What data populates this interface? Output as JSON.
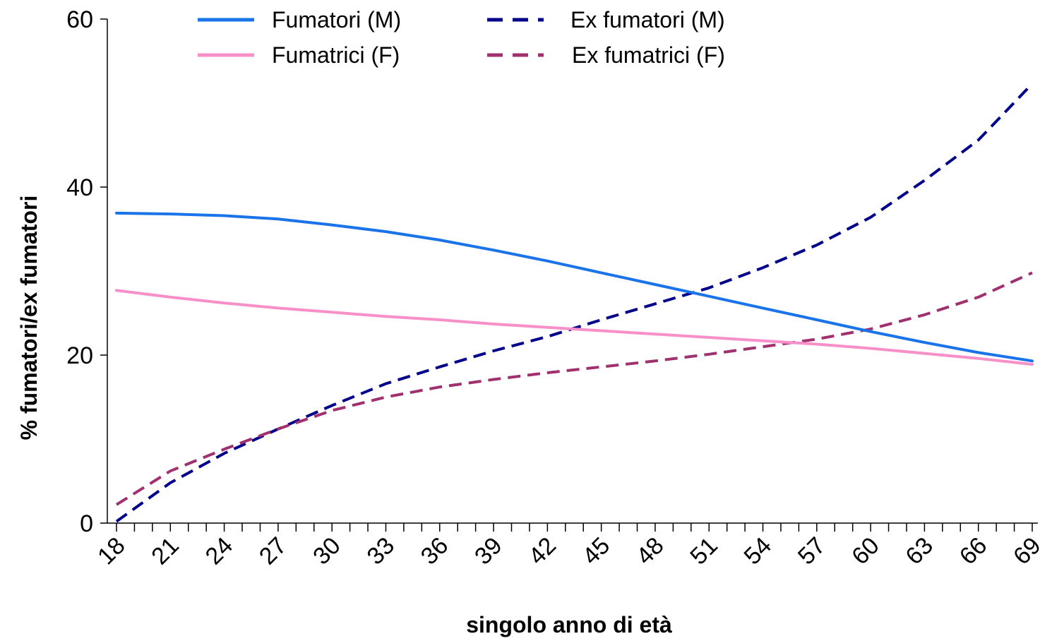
{
  "chart_data": {
    "type": "line",
    "xlabel": "singolo anno di età",
    "ylabel": "% fumatori/ex fumatori",
    "xlim": [
      18,
      69
    ],
    "ylim": [
      0,
      60
    ],
    "x_ticks": [
      18,
      21,
      24,
      27,
      30,
      33,
      36,
      39,
      42,
      45,
      48,
      51,
      54,
      57,
      60,
      63,
      66,
      69
    ],
    "y_ticks": [
      0,
      20,
      40,
      60
    ],
    "legend_position": "top",
    "x": [
      18,
      21,
      24,
      27,
      30,
      33,
      36,
      39,
      42,
      45,
      48,
      51,
      54,
      57,
      60,
      63,
      66,
      69
    ],
    "series": [
      {
        "name": "Fumatori (M)",
        "color": "#1a73e8",
        "style": "solid",
        "values": [
          36.9,
          36.8,
          36.6,
          36.2,
          35.5,
          34.7,
          33.7,
          32.5,
          31.2,
          29.8,
          28.4,
          27.0,
          25.6,
          24.2,
          22.8,
          21.5,
          20.3,
          19.3
        ]
      },
      {
        "name": "Fumatrici (F)",
        "color": "#f78fc8",
        "style": "solid",
        "values": [
          27.7,
          26.9,
          26.2,
          25.6,
          25.1,
          24.6,
          24.2,
          23.7,
          23.3,
          22.9,
          22.5,
          22.1,
          21.7,
          21.3,
          20.8,
          20.2,
          19.6,
          18.9
        ]
      },
      {
        "name": "Ex fumatori (M)",
        "color": "#00008b",
        "style": "dashed",
        "values": [
          0.2,
          4.8,
          8.3,
          11.2,
          14.0,
          16.6,
          18.6,
          20.5,
          22.2,
          24.2,
          26.1,
          28.0,
          30.4,
          33.1,
          36.4,
          40.8,
          45.6,
          52.3
        ]
      },
      {
        "name": "Ex fumatrici (F)",
        "color": "#a0306e",
        "style": "dashed",
        "values": [
          2.2,
          6.2,
          8.8,
          11.2,
          13.4,
          15.0,
          16.2,
          17.1,
          17.9,
          18.6,
          19.3,
          20.1,
          21.0,
          21.9,
          23.1,
          24.8,
          26.9,
          29.8
        ]
      }
    ]
  }
}
